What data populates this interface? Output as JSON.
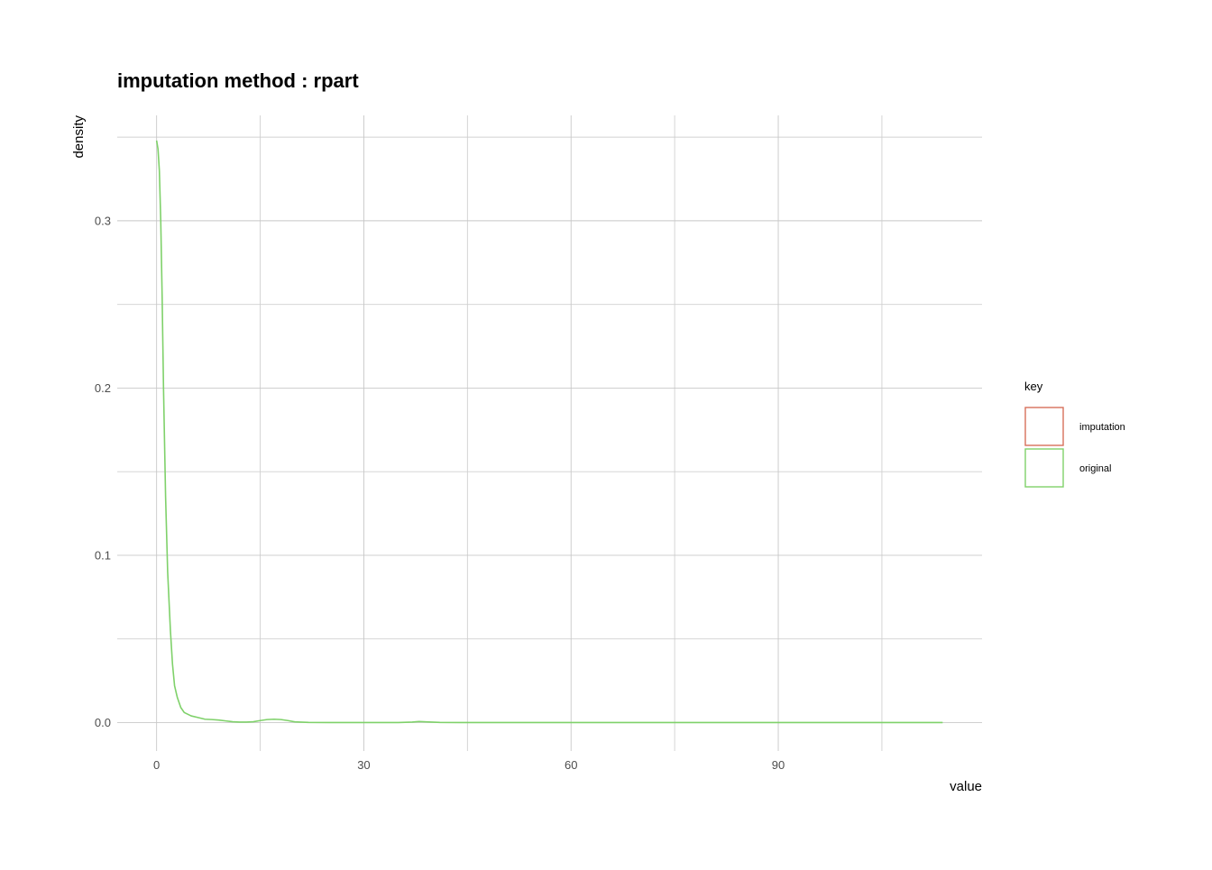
{
  "chart_data": {
    "type": "line",
    "title": "imputation method : rpart",
    "xlabel": "value",
    "ylabel": "density",
    "xlim": [
      -5.7,
      119.5
    ],
    "ylim": [
      -0.017,
      0.363
    ],
    "x_ticks": [
      0,
      30,
      60,
      90
    ],
    "x_minor_ticks": [
      15,
      45,
      75,
      105
    ],
    "y_ticks": [
      0.0,
      0.1,
      0.2,
      0.3
    ],
    "y_tick_labels": [
      "0.0",
      "0.1",
      "0.2",
      "0.3"
    ],
    "y_minor_ticks": [
      0.05,
      0.15,
      0.25,
      0.35
    ],
    "grid": true,
    "legend": {
      "title": "key",
      "position": "right",
      "entries": [
        {
          "label": "imputation",
          "color": "#d7705a"
        },
        {
          "label": "original",
          "color": "#7fd16a"
        }
      ]
    },
    "series": [
      {
        "name": "imputation",
        "color": "#d7705a",
        "x": [],
        "y": []
      },
      {
        "name": "original",
        "color": "#7fd16a",
        "x": [
          0,
          0.2,
          0.4,
          0.6,
          0.8,
          1.0,
          1.3,
          1.6,
          2.0,
          2.3,
          2.6,
          3.0,
          3.5,
          4.0,
          5.0,
          6.0,
          7.0,
          8.0,
          9.0,
          10.0,
          11.0,
          12.0,
          13.0,
          14.0,
          15.0,
          16.0,
          17.0,
          18.0,
          19.0,
          20.0,
          22.0,
          25.0,
          30.0,
          35.0,
          37.0,
          38.0,
          39.0,
          41.0,
          45.0,
          60.0,
          80.0,
          100.0,
          113.8
        ],
        "y": [
          0.348,
          0.343,
          0.33,
          0.3,
          0.255,
          0.2,
          0.135,
          0.09,
          0.055,
          0.035,
          0.022,
          0.015,
          0.009,
          0.006,
          0.004,
          0.003,
          0.002,
          0.0018,
          0.0015,
          0.001,
          0.0005,
          0.0003,
          0.0003,
          0.0005,
          0.0012,
          0.0018,
          0.002,
          0.0018,
          0.0012,
          0.0004,
          0.0001,
          0.0,
          0.0,
          0.0,
          0.0003,
          0.0006,
          0.0004,
          0.0001,
          0.0,
          0.0,
          0.0,
          0.0,
          0.0
        ]
      }
    ]
  }
}
